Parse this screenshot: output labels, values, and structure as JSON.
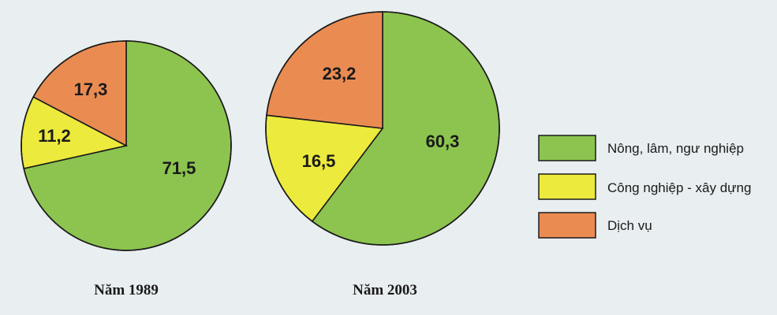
{
  "chart_data": [
    {
      "type": "pie",
      "title": "Năm 1989",
      "categories": [
        "Nông, lâm, ngư nghiệp",
        "Công nghiệp - xây dựng",
        "Dịch vụ"
      ],
      "values": [
        71.5,
        11.2,
        17.3
      ],
      "labels": [
        "71,5",
        "11,2",
        "17,3"
      ]
    },
    {
      "type": "pie",
      "title": "Năm 2003",
      "categories": [
        "Nông, lâm, ngư nghiệp",
        "Công nghiệp - xây dựng",
        "Dịch vụ"
      ],
      "values": [
        60.3,
        16.5,
        23.2
      ],
      "labels": [
        "60,3",
        "16,5",
        "23,2"
      ]
    }
  ],
  "legend": {
    "placement": "right",
    "items": [
      {
        "label": "Nông, lâm, ngư nghiệp",
        "color": "#8cc44f"
      },
      {
        "label": "Công nghiệp - xây dựng",
        "color": "#ecea3c"
      },
      {
        "label": "Dịch vụ",
        "color": "#ea8c52"
      }
    ]
  },
  "colors": [
    "#8cc44f",
    "#ecea3c",
    "#ea8c52"
  ]
}
